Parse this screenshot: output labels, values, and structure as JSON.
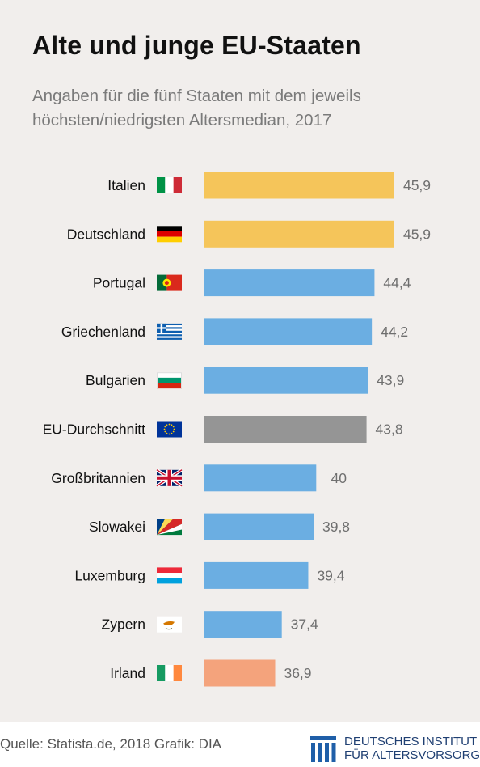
{
  "title": "Alte und junge EU-Staaten",
  "subtitle": "Angaben für die fünf Staaten mit dem jeweils höchsten/niedrigsten Altersmedian, 2017",
  "footer": {
    "source": "Quelle: Statista.de, 2018  Grafik: DIA",
    "logo_line1": "DEUTSCHES INSTITUT",
    "logo_line2": "FÜR ALTERSVORSORGE"
  },
  "colors": {
    "highest": "#f5c55a",
    "upper": "#6baee2",
    "average": "#959595",
    "lowest": "#f4a37c",
    "label": "#111111",
    "value": "#6f6f6f"
  },
  "chart_data": {
    "type": "bar",
    "orientation": "horizontal",
    "title": "Alte und junge EU-Staaten",
    "subtitle": "Angaben für die fünf Staaten mit dem jeweils höchsten/niedrigsten Altersmedian, 2017",
    "categories": [
      "Italien",
      "Deutschland",
      "Portugal",
      "Griechenland",
      "Bulgarien",
      "EU-Durchschnitt",
      "Großbritannien",
      "Slowakei",
      "Luxemburg",
      "Zypern",
      "Irland"
    ],
    "values": [
      45.9,
      45.9,
      44.4,
      44.2,
      43.9,
      43.8,
      40,
      39.8,
      39.4,
      37.4,
      36.9
    ],
    "value_labels": [
      "45,9",
      "45,9",
      "44,4",
      "44,2",
      "43,9",
      "43,8",
      "40",
      "39,8",
      "39,4",
      "37,4",
      "36,9"
    ],
    "bar_colors": [
      "#f5c55a",
      "#f5c55a",
      "#6baee2",
      "#6baee2",
      "#6baee2",
      "#959595",
      "#6baee2",
      "#6baee2",
      "#6baee2",
      "#6baee2",
      "#f4a37c"
    ],
    "flags": [
      "flag-italy-icon",
      "flag-germany-icon",
      "flag-portugal-icon",
      "flag-greece-icon",
      "flag-bulgaria-icon",
      "flag-eu-icon",
      "flag-uk-icon",
      "flag-seychelles-icon",
      "flag-luxembourg-icon",
      "flag-cyprus-icon",
      "flag-ireland-icon"
    ],
    "xlim": [
      31.5,
      45.9
    ],
    "grid": false,
    "legend": "none"
  }
}
